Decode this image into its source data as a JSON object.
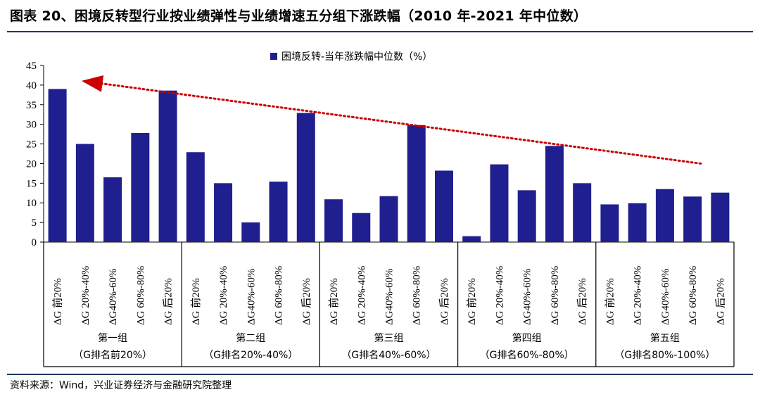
{
  "page": {
    "title": "图表 20、困境反转型行业按业绩弹性与业绩增速五分组下涨跌幅（2010 年-2021 年中位数）",
    "source": "资料来源：Wind，兴业证券经济与金融研究院整理",
    "rule_color": "#1f3864"
  },
  "chart_data": {
    "type": "bar",
    "legend": {
      "label": "困境反转-当年涨跌幅中位数（%）",
      "position": "top-center"
    },
    "bar_color": "#1f1f8f",
    "trend_arrow_color": "#cc0000",
    "ylim": [
      0,
      45
    ],
    "yticks": [
      0,
      5,
      10,
      15,
      20,
      25,
      30,
      35,
      40,
      45
    ],
    "grid": false,
    "categories": [
      "ΔG 前20%",
      "ΔG 20%-40%",
      "ΔG40%-60%",
      "ΔG 60%-80%",
      "ΔG 后20%",
      "ΔG 前20%",
      "ΔG 20%-40%",
      "ΔG40%-60%",
      "ΔG 60%-80%",
      "ΔG 后20%",
      "ΔG 前20%",
      "ΔG 20%-40%",
      "ΔG40%-60%",
      "ΔG 60%-80%",
      "ΔG 后20%",
      "ΔG 前20%",
      "ΔG 20%-40%",
      "ΔG40%-60%",
      "ΔG 60%-80%",
      "ΔG 后20%",
      "ΔG 前20%",
      "ΔG 20%-40%",
      "ΔG40%-60%",
      "ΔG 60%-80%",
      "ΔG 后20%"
    ],
    "values": [
      39.0,
      25.0,
      16.5,
      27.8,
      38.6,
      22.9,
      15.0,
      5.0,
      15.4,
      32.9,
      10.9,
      7.4,
      11.7,
      29.8,
      18.2,
      1.5,
      19.8,
      13.2,
      24.5,
      15.0,
      9.6,
      9.9,
      13.5,
      11.6,
      12.6
    ],
    "groups": [
      {
        "name": "第一组",
        "sub": "（G排名前20%）"
      },
      {
        "name": "第二组",
        "sub": "（G排名20%-40%）"
      },
      {
        "name": "第三组",
        "sub": "（G排名40%-60%）"
      },
      {
        "name": "第四组",
        "sub": "（G排名60%-80%）"
      },
      {
        "name": "第五组",
        "sub": "（G排名80%-100%）"
      }
    ],
    "trend_arrow": {
      "from_y": 20.0,
      "to_y": 41.0
    }
  }
}
